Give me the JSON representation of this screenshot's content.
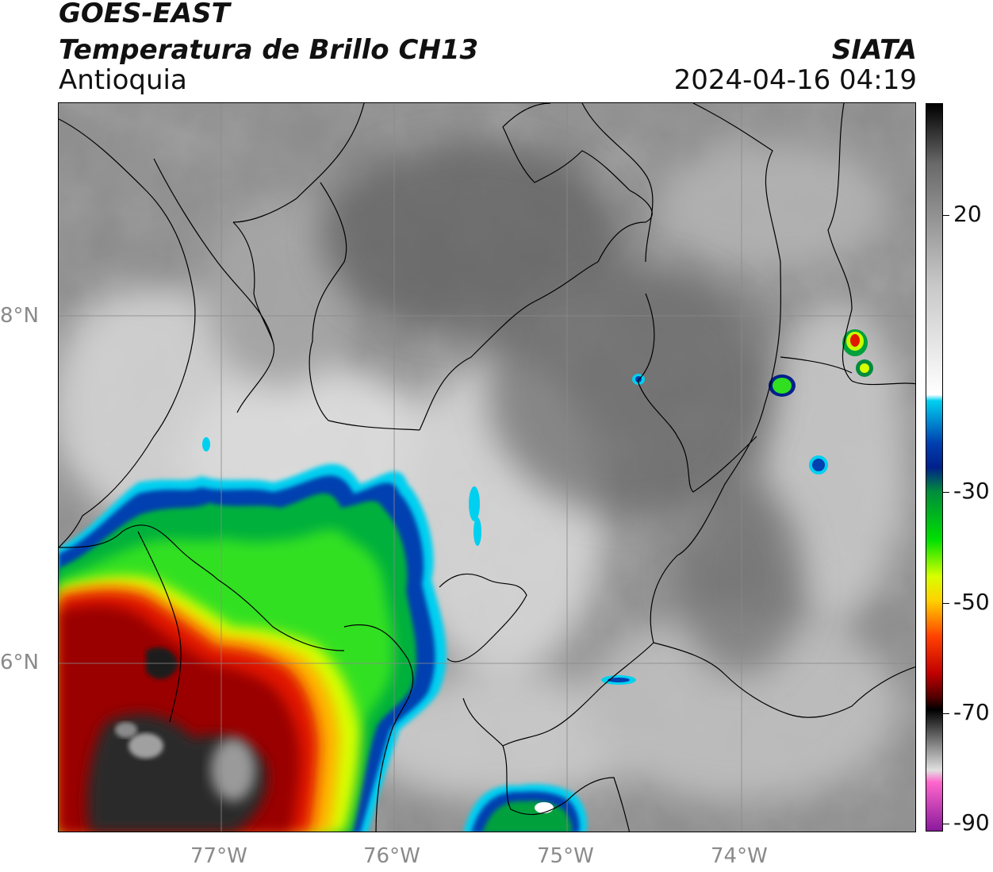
{
  "header": {
    "satellite": "GOES-EAST",
    "product": "Temperatura de Brillo CH13",
    "region": "Antioquia",
    "organization": "SIATA",
    "timestamp": "2024-04-16 04:19"
  },
  "axes": {
    "lat_labels": [
      "8°N",
      "6°N"
    ],
    "lon_labels": [
      "77°W",
      "76°W",
      "75°W",
      "74°W"
    ]
  },
  "colorbar": {
    "tick_labels": [
      "20",
      "-30",
      "-50",
      "-70",
      "-90"
    ],
    "unit": "",
    "stops": [
      {
        "value": 30,
        "color": "#000000"
      },
      {
        "value": 20,
        "color": "#6a6a6a"
      },
      {
        "value": 0,
        "color": "#c8c8c8"
      },
      {
        "value": -18,
        "color": "#ffffff"
      },
      {
        "value": -19,
        "color": "#00d0f0"
      },
      {
        "value": -26,
        "color": "#0040b0"
      },
      {
        "value": -30,
        "color": "#00208a"
      },
      {
        "value": -34,
        "color": "#008c3c"
      },
      {
        "value": -42,
        "color": "#00e000"
      },
      {
        "value": -48,
        "color": "#d8ff00"
      },
      {
        "value": -52,
        "color": "#ffd200"
      },
      {
        "value": -58,
        "color": "#ff4000"
      },
      {
        "value": -64,
        "color": "#c00000"
      },
      {
        "value": -68,
        "color": "#500000"
      },
      {
        "value": -70,
        "color": "#000000"
      },
      {
        "value": -76,
        "color": "#8a8a8a"
      },
      {
        "value": -80,
        "color": "#e0e0e0"
      },
      {
        "value": -82,
        "color": "#ff66cc"
      },
      {
        "value": -90,
        "color": "#8a1a9c"
      }
    ]
  },
  "colors": {
    "background_gray": "#8a8a8a",
    "cold_red": "#c00000",
    "cold_yellow": "#ffd200",
    "green": "#00e000",
    "blue": "#0040b0",
    "cyan": "#00d0f0"
  }
}
